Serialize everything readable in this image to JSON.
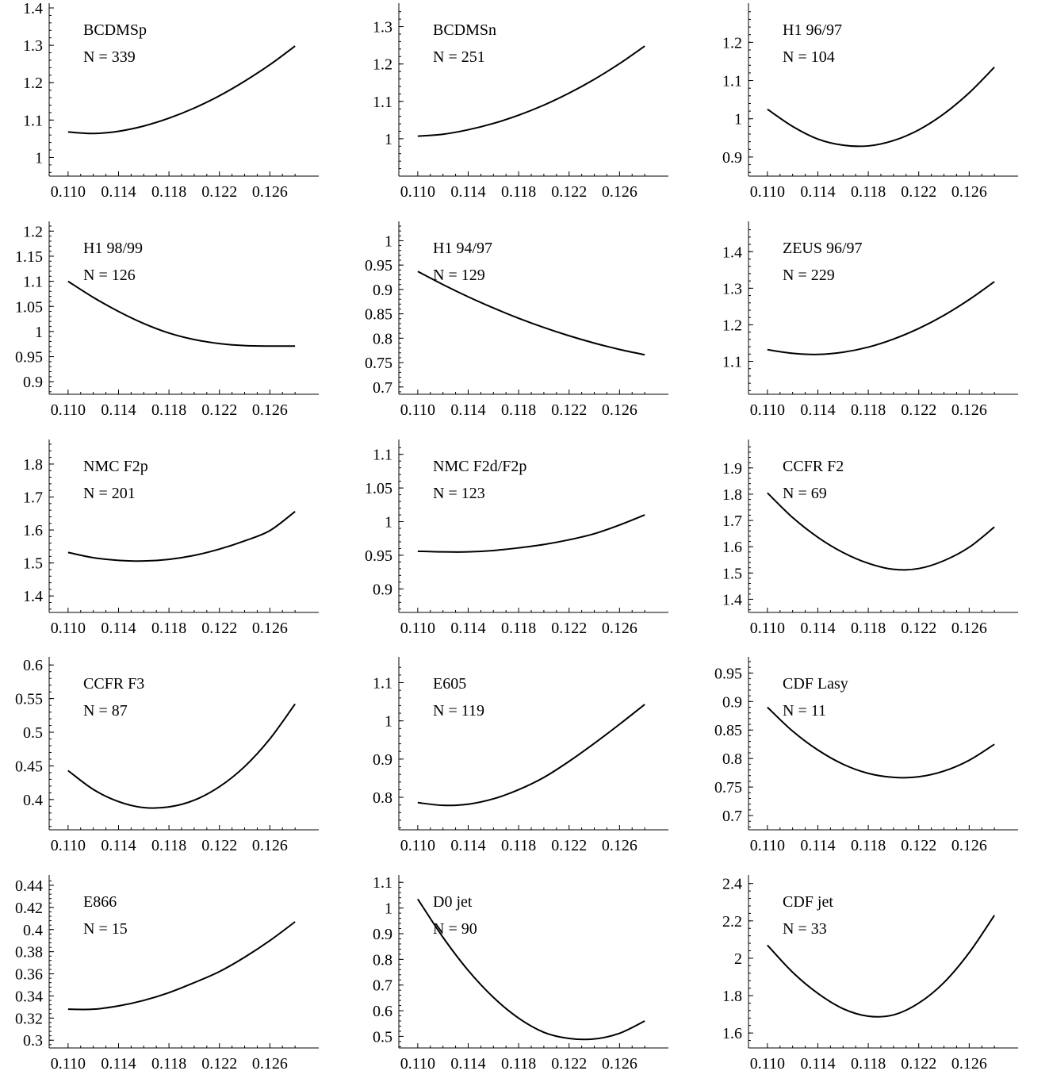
{
  "chart_data": [
    {
      "type": "line",
      "title": "BCDMSp",
      "subtitle": "N = 339",
      "xticks": [
        "0.110",
        "0.114",
        "0.118",
        "0.122",
        "0.126"
      ],
      "xlim": [
        0.1085,
        0.1295
      ],
      "yticks": [
        "1",
        "1.1",
        "1.2",
        "1.3",
        "1.4"
      ],
      "ylim": [
        0.95,
        1.4
      ],
      "series": [
        {
          "x": [
            0.11,
            0.112,
            0.114,
            0.116,
            0.118,
            0.12,
            0.122,
            0.124,
            0.126,
            0.128
          ],
          "y": [
            1.068,
            1.064,
            1.07,
            1.084,
            1.105,
            1.132,
            1.165,
            1.204,
            1.248,
            1.298
          ]
        }
      ]
    },
    {
      "type": "line",
      "title": "BCDMSn",
      "subtitle": "N = 251",
      "xticks": [
        "0.110",
        "0.114",
        "0.118",
        "0.122",
        "0.126"
      ],
      "xlim": [
        0.1085,
        0.1295
      ],
      "yticks": [
        "1",
        "1.1",
        "1.2",
        "1.3"
      ],
      "ylim": [
        0.9,
        1.35
      ],
      "series": [
        {
          "x": [
            0.11,
            0.112,
            0.114,
            0.116,
            0.118,
            0.12,
            0.122,
            0.124,
            0.126,
            0.128
          ],
          "y": [
            1.007,
            1.012,
            1.024,
            1.041,
            1.063,
            1.09,
            1.122,
            1.159,
            1.201,
            1.248
          ]
        }
      ]
    },
    {
      "type": "line",
      "title": "H1 96/97",
      "subtitle": "N = 104",
      "xticks": [
        "0.110",
        "0.114",
        "0.118",
        "0.122",
        "0.126"
      ],
      "xlim": [
        0.1085,
        0.1295
      ],
      "yticks": [
        "0.9",
        "1",
        "1.1",
        "1.2"
      ],
      "ylim": [
        0.85,
        1.29
      ],
      "series": [
        {
          "x": [
            0.11,
            0.112,
            0.114,
            0.116,
            0.118,
            0.12,
            0.122,
            0.124,
            0.126,
            0.128
          ],
          "y": [
            1.025,
            0.98,
            0.947,
            0.931,
            0.929,
            0.943,
            0.971,
            1.013,
            1.068,
            1.135
          ]
        }
      ]
    },
    {
      "type": "line",
      "title": "H1 98/99",
      "subtitle": "N = 126",
      "xticks": [
        "0.110",
        "0.114",
        "0.118",
        "0.122",
        "0.126"
      ],
      "xlim": [
        0.1085,
        0.1295
      ],
      "yticks": [
        "0.9",
        "0.95",
        "1",
        "1.05",
        "1.1",
        "1.15",
        "1.2"
      ],
      "ylim": [
        0.875,
        1.21
      ],
      "series": [
        {
          "x": [
            0.11,
            0.112,
            0.114,
            0.116,
            0.118,
            0.12,
            0.122,
            0.124,
            0.126,
            0.128
          ],
          "y": [
            1.1,
            1.068,
            1.04,
            1.016,
            0.997,
            0.984,
            0.976,
            0.972,
            0.971,
            0.971
          ]
        }
      ]
    },
    {
      "type": "line",
      "title": "H1 94/97",
      "subtitle": "N = 129",
      "xticks": [
        "0.110",
        "0.114",
        "0.118",
        "0.122",
        "0.126"
      ],
      "xlim": [
        0.1085,
        0.1295
      ],
      "yticks": [
        "0.7",
        "0.75",
        "0.8",
        "0.85",
        "0.9",
        "0.95",
        "1"
      ],
      "ylim": [
        0.685,
        1.03
      ],
      "series": [
        {
          "x": [
            0.11,
            0.112,
            0.114,
            0.116,
            0.118,
            0.12,
            0.122,
            0.124,
            0.126,
            0.128
          ],
          "y": [
            0.937,
            0.91,
            0.885,
            0.862,
            0.841,
            0.822,
            0.805,
            0.79,
            0.777,
            0.766
          ]
        }
      ]
    },
    {
      "type": "line",
      "title": "ZEUS 96/97",
      "subtitle": "N = 229",
      "xticks": [
        "0.110",
        "0.114",
        "0.118",
        "0.122",
        "0.126"
      ],
      "xlim": [
        0.1085,
        0.1295
      ],
      "yticks": [
        "1.1",
        "1.2",
        "1.3",
        "1.4"
      ],
      "ylim": [
        1.01,
        1.47
      ],
      "series": [
        {
          "x": [
            0.11,
            0.112,
            0.114,
            0.116,
            0.118,
            0.12,
            0.122,
            0.124,
            0.126,
            0.128
          ],
          "y": [
            1.132,
            1.122,
            1.119,
            1.125,
            1.139,
            1.161,
            1.19,
            1.226,
            1.269,
            1.318
          ]
        }
      ]
    },
    {
      "type": "line",
      "title": "NMC F2p",
      "subtitle": "N = 201",
      "xticks": [
        "0.110",
        "0.114",
        "0.118",
        "0.122",
        "0.126"
      ],
      "xlim": [
        0.1085,
        0.1295
      ],
      "yticks": [
        "1.4",
        "1.5",
        "1.6",
        "1.7",
        "1.8"
      ],
      "ylim": [
        1.35,
        1.86
      ],
      "series": [
        {
          "x": [
            0.11,
            0.112,
            0.114,
            0.116,
            0.118,
            0.12,
            0.122,
            0.124,
            0.126,
            0.128
          ],
          "y": [
            1.532,
            1.516,
            1.508,
            1.506,
            1.511,
            1.523,
            1.542,
            1.567,
            1.598,
            1.656
          ]
        }
      ]
    },
    {
      "type": "line",
      "title": "NMC F2d/F2p",
      "subtitle": "N = 123",
      "xticks": [
        "0.110",
        "0.114",
        "0.118",
        "0.122",
        "0.126"
      ],
      "xlim": [
        0.1085,
        0.1295
      ],
      "yticks": [
        "0.9",
        "0.95",
        "1",
        "1.05",
        "1.1"
      ],
      "ylim": [
        0.865,
        1.115
      ],
      "series": [
        {
          "x": [
            0.11,
            0.112,
            0.114,
            0.116,
            0.118,
            0.12,
            0.122,
            0.124,
            0.126,
            0.128
          ],
          "y": [
            0.956,
            0.955,
            0.955,
            0.957,
            0.961,
            0.966,
            0.973,
            0.982,
            0.995,
            1.01
          ]
        }
      ]
    },
    {
      "type": "line",
      "title": "CCFR F2",
      "subtitle": "N = 69",
      "xticks": [
        "0.110",
        "0.114",
        "0.118",
        "0.122",
        "0.126"
      ],
      "xlim": [
        0.1085,
        0.1295
      ],
      "yticks": [
        "1.4",
        "1.5",
        "1.6",
        "1.7",
        "1.8",
        "1.9"
      ],
      "ylim": [
        1.35,
        1.99
      ],
      "series": [
        {
          "x": [
            0.11,
            0.112,
            0.114,
            0.116,
            0.118,
            0.12,
            0.122,
            0.124,
            0.126,
            0.128
          ],
          "y": [
            1.805,
            1.711,
            1.636,
            1.578,
            1.537,
            1.514,
            1.517,
            1.547,
            1.598,
            1.675
          ]
        }
      ]
    },
    {
      "type": "line",
      "title": "CCFR F3",
      "subtitle": "N = 87",
      "xticks": [
        "0.110",
        "0.114",
        "0.118",
        "0.122",
        "0.126"
      ],
      "xlim": [
        0.1085,
        0.1295
      ],
      "yticks": [
        "0.4",
        "0.45",
        "0.5",
        "0.55",
        "0.6"
      ],
      "ylim": [
        0.355,
        0.605
      ],
      "series": [
        {
          "x": [
            0.11,
            0.112,
            0.114,
            0.116,
            0.118,
            0.12,
            0.122,
            0.124,
            0.126,
            0.128
          ],
          "y": [
            0.443,
            0.415,
            0.397,
            0.388,
            0.389,
            0.399,
            0.419,
            0.449,
            0.49,
            0.542
          ]
        }
      ]
    },
    {
      "type": "line",
      "title": "E605",
      "subtitle": "N = 119",
      "xticks": [
        "0.110",
        "0.114",
        "0.118",
        "0.122",
        "0.126"
      ],
      "xlim": [
        0.1085,
        0.1295
      ],
      "yticks": [
        "0.8",
        "0.9",
        "1",
        "1.1"
      ],
      "ylim": [
        0.715,
        1.155
      ],
      "series": [
        {
          "x": [
            0.11,
            0.112,
            0.114,
            0.116,
            0.118,
            0.12,
            0.122,
            0.124,
            0.126,
            0.128
          ],
          "y": [
            0.786,
            0.779,
            0.782,
            0.796,
            0.82,
            0.852,
            0.894,
            0.941,
            0.991,
            1.043
          ]
        }
      ]
    },
    {
      "type": "line",
      "title": "CDF Lasy",
      "subtitle": "N = 11",
      "xticks": [
        "0.110",
        "0.114",
        "0.118",
        "0.122",
        "0.126"
      ],
      "xlim": [
        0.1085,
        0.1295
      ],
      "yticks": [
        "0.7",
        "0.75",
        "0.8",
        "0.85",
        "0.9",
        "0.95"
      ],
      "ylim": [
        0.675,
        0.97
      ],
      "series": [
        {
          "x": [
            0.11,
            0.112,
            0.114,
            0.116,
            0.118,
            0.12,
            0.122,
            0.124,
            0.126,
            0.128
          ],
          "y": [
            0.89,
            0.848,
            0.815,
            0.79,
            0.774,
            0.767,
            0.768,
            0.778,
            0.797,
            0.825
          ]
        }
      ]
    },
    {
      "type": "line",
      "title": "E866",
      "subtitle": "N = 15",
      "xticks": [
        "0.110",
        "0.114",
        "0.118",
        "0.122",
        "0.126"
      ],
      "xlim": [
        0.1085,
        0.1295
      ],
      "yticks": [
        "0.3",
        "0.32",
        "0.34",
        "0.36",
        "0.38",
        "0.4",
        "0.42",
        "0.44"
      ],
      "ylim": [
        0.293,
        0.445
      ],
      "series": [
        {
          "x": [
            0.11,
            0.112,
            0.114,
            0.116,
            0.118,
            0.12,
            0.122,
            0.124,
            0.126,
            0.128
          ],
          "y": [
            0.328,
            0.328,
            0.331,
            0.336,
            0.343,
            0.352,
            0.362,
            0.375,
            0.39,
            0.407
          ]
        }
      ]
    },
    {
      "type": "line",
      "title": "D0 jet",
      "subtitle": "N = 90",
      "xticks": [
        "0.110",
        "0.114",
        "0.118",
        "0.122",
        "0.126"
      ],
      "xlim": [
        0.1085,
        0.1295
      ],
      "yticks": [
        "0.5",
        "0.6",
        "0.7",
        "0.8",
        "0.9",
        "1",
        "1.1"
      ],
      "ylim": [
        0.455,
        1.11
      ],
      "series": [
        {
          "x": [
            0.11,
            0.112,
            0.114,
            0.116,
            0.118,
            0.12,
            0.122,
            0.124,
            0.126,
            0.128
          ],
          "y": [
            1.035,
            0.886,
            0.757,
            0.652,
            0.571,
            0.516,
            0.492,
            0.49,
            0.512,
            0.56
          ]
        }
      ]
    },
    {
      "type": "line",
      "title": "CDF jet",
      "subtitle": "N = 33",
      "xticks": [
        "0.110",
        "0.114",
        "0.118",
        "0.122",
        "0.126"
      ],
      "xlim": [
        0.1085,
        0.1295
      ],
      "yticks": [
        "1.6",
        "1.8",
        "2",
        "2.2",
        "2.4"
      ],
      "ylim": [
        1.52,
        2.42
      ],
      "series": [
        {
          "x": [
            0.11,
            0.112,
            0.114,
            0.116,
            0.118,
            0.12,
            0.122,
            0.124,
            0.126,
            0.128
          ],
          "y": [
            2.07,
            1.925,
            1.812,
            1.73,
            1.69,
            1.697,
            1.76,
            1.87,
            2.03,
            2.23
          ]
        }
      ]
    }
  ]
}
